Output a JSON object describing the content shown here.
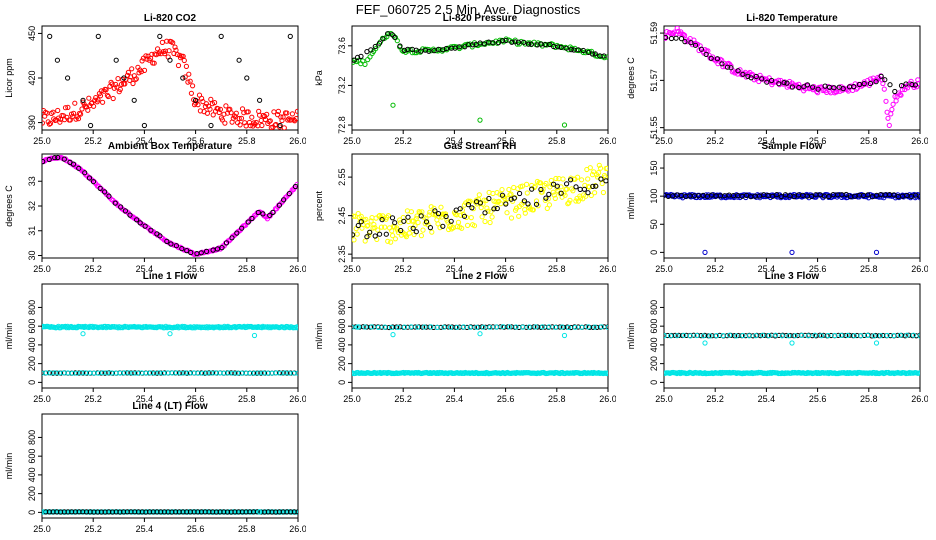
{
  "page_title": "FEF_060725  2.5 Min. Ave. Diagnostics",
  "chart_data": [
    {
      "id": "co2",
      "type": "scatter",
      "title": "Li-820 CO2",
      "ylabel": "Licor ppm",
      "xlim": [
        25.0,
        26.0
      ],
      "ylim": [
        385,
        455
      ],
      "xticks": [
        "25.0",
        "25.2",
        "25.4",
        "25.6",
        "25.8",
        "26.0"
      ],
      "yticks": [
        390,
        420,
        450
      ],
      "yticks_text": [
        "390",
        "420",
        "450"
      ],
      "series": [
        {
          "color": "#ff0000",
          "kind": "trend",
          "knots": [
            [
              25.0,
              392
            ],
            [
              25.05,
              393
            ],
            [
              25.1,
              396
            ],
            [
              25.2,
              402
            ],
            [
              25.3,
              415
            ],
            [
              25.4,
              428
            ],
            [
              25.45,
              438
            ],
            [
              25.5,
              440
            ],
            [
              25.55,
              430
            ],
            [
              25.6,
              405
            ],
            [
              25.7,
              396
            ],
            [
              25.8,
              393
            ],
            [
              25.9,
              392
            ],
            [
              26.0,
              392
            ]
          ],
          "n": 220,
          "jitter": 6
        },
        {
          "color": "#000000",
          "kind": "rows",
          "rows": [
            448,
            432,
            420,
            405,
            388
          ],
          "xs": [
            25.03,
            25.06,
            25.1,
            25.16,
            25.19,
            25.22,
            25.29,
            25.32,
            25.36,
            25.4,
            25.46,
            25.5,
            25.55,
            25.6,
            25.66,
            25.7,
            25.77,
            25.8,
            25.85,
            25.93,
            25.97
          ]
        }
      ]
    },
    {
      "id": "pressure",
      "type": "scatter",
      "title": "Li-820 Pressure",
      "ylabel": "kPa",
      "xlim": [
        25.0,
        26.0
      ],
      "ylim": [
        72.75,
        73.8
      ],
      "xticks": [
        "25.0",
        "25.2",
        "25.4",
        "25.6",
        "25.8",
        "26.0"
      ],
      "yticks": [
        72.8,
        73.2,
        73.6
      ],
      "yticks_text": [
        "72.8",
        "73.2",
        "73.6"
      ],
      "series": [
        {
          "color": "#00bb00",
          "kind": "trend",
          "knots": [
            [
              25.0,
              73.45
            ],
            [
              25.05,
              73.43
            ],
            [
              25.1,
              73.6
            ],
            [
              25.15,
              73.75
            ],
            [
              25.2,
              73.55
            ],
            [
              25.3,
              73.55
            ],
            [
              25.4,
              73.58
            ],
            [
              25.5,
              73.62
            ],
            [
              25.6,
              73.65
            ],
            [
              25.7,
              73.62
            ],
            [
              25.8,
              73.6
            ],
            [
              25.9,
              73.55
            ],
            [
              26.0,
              73.48
            ]
          ],
          "n": 120,
          "jitter": 0.02
        },
        {
          "color": "#000000",
          "kind": "trend",
          "knots": [
            [
              25.0,
              73.45
            ],
            [
              25.1,
              73.6
            ],
            [
              25.15,
              73.75
            ],
            [
              25.2,
              73.56
            ],
            [
              25.3,
              73.55
            ],
            [
              25.4,
              73.58
            ],
            [
              25.5,
              73.62
            ],
            [
              25.6,
              73.65
            ],
            [
              25.7,
              73.62
            ],
            [
              25.8,
              73.6
            ],
            [
              25.9,
              73.55
            ],
            [
              26.0,
              73.48
            ]
          ],
          "n": 60,
          "jitter": 0.01
        },
        {
          "color": "#00bb00",
          "kind": "points",
          "points": [
            [
              25.16,
              73.0
            ],
            [
              25.5,
              72.85
            ],
            [
              25.83,
              72.8
            ]
          ]
        }
      ]
    },
    {
      "id": "licor_temp",
      "type": "scatter",
      "title": "Li-820 Temperature",
      "ylabel": "degrees C",
      "xlim": [
        25.0,
        26.0
      ],
      "ylim": [
        51.549,
        51.593
      ],
      "xticks": [
        "25.0",
        "25.2",
        "25.4",
        "25.6",
        "25.8",
        "26.0"
      ],
      "yticks": [
        51.55,
        51.57,
        51.59
      ],
      "yticks_text": [
        "51.55",
        "51.57",
        "51.59"
      ],
      "series": [
        {
          "color": "#ff00ff",
          "kind": "trend",
          "knots": [
            [
              25.0,
              51.589
            ],
            [
              25.05,
              51.591
            ],
            [
              25.1,
              51.587
            ],
            [
              25.2,
              51.579
            ],
            [
              25.3,
              51.573
            ],
            [
              25.4,
              51.57
            ],
            [
              25.5,
              51.568
            ],
            [
              25.6,
              51.566
            ],
            [
              25.7,
              51.566
            ],
            [
              25.8,
              51.569
            ],
            [
              25.85,
              51.572
            ],
            [
              25.88,
              51.552
            ],
            [
              25.9,
              51.562
            ],
            [
              25.95,
              51.568
            ],
            [
              26.0,
              51.569
            ]
          ],
          "n": 200,
          "jitter": 0.0015
        },
        {
          "color": "#000000",
          "kind": "trend",
          "knots": [
            [
              25.0,
              51.589
            ],
            [
              25.1,
              51.586
            ],
            [
              25.2,
              51.579
            ],
            [
              25.3,
              51.573
            ],
            [
              25.4,
              51.57
            ],
            [
              25.5,
              51.568
            ],
            [
              25.6,
              51.567
            ],
            [
              25.7,
              51.567
            ],
            [
              25.8,
              51.569
            ],
            [
              25.85,
              51.571
            ],
            [
              25.9,
              51.566
            ],
            [
              25.95,
              51.568
            ],
            [
              26.0,
              51.569
            ]
          ],
          "n": 50,
          "jitter": 0.0008
        }
      ]
    },
    {
      "id": "box_temp",
      "type": "scatter",
      "title": "Ambient Box Temperature",
      "ylabel": "degrees C",
      "xlim": [
        25.0,
        26.0
      ],
      "ylim": [
        29.9,
        34.1
      ],
      "xticks": [
        "25.0",
        "25.2",
        "25.4",
        "25.6",
        "25.8",
        "26.0"
      ],
      "yticks": [
        30,
        31,
        32,
        33
      ],
      "yticks_text": [
        "30",
        "31",
        "32",
        "33"
      ],
      "series": [
        {
          "color": "#ff00ff",
          "kind": "trend",
          "knots": [
            [
              25.0,
              33.8
            ],
            [
              25.05,
              33.95
            ],
            [
              25.08,
              33.95
            ],
            [
              25.15,
              33.5
            ],
            [
              25.2,
              33.0
            ],
            [
              25.3,
              32.0
            ],
            [
              25.4,
              31.2
            ],
            [
              25.5,
              30.5
            ],
            [
              25.6,
              30.05
            ],
            [
              25.7,
              30.3
            ],
            [
              25.8,
              31.3
            ],
            [
              25.85,
              31.8
            ],
            [
              25.88,
              31.5
            ],
            [
              25.95,
              32.3
            ],
            [
              26.0,
              32.9
            ]
          ],
          "n": 200,
          "jitter": 0.03
        },
        {
          "color": "#000000",
          "kind": "trend",
          "knots": [
            [
              25.0,
              33.8
            ],
            [
              25.05,
              33.95
            ],
            [
              25.08,
              33.95
            ],
            [
              25.15,
              33.5
            ],
            [
              25.2,
              33.0
            ],
            [
              25.3,
              32.0
            ],
            [
              25.4,
              31.2
            ],
            [
              25.5,
              30.5
            ],
            [
              25.6,
              30.05
            ],
            [
              25.7,
              30.3
            ],
            [
              25.8,
              31.3
            ],
            [
              25.85,
              31.8
            ],
            [
              25.88,
              31.5
            ],
            [
              25.95,
              32.3
            ],
            [
              26.0,
              32.9
            ]
          ],
          "n": 50,
          "jitter": 0.02
        }
      ]
    },
    {
      "id": "rh",
      "type": "scatter",
      "title": "Gas Stream RH",
      "ylabel": "percent",
      "xlim": [
        25.0,
        26.0
      ],
      "ylim": [
        2.34,
        2.61
      ],
      "xticks": [
        "25.0",
        "25.2",
        "25.4",
        "25.6",
        "25.8",
        "26.0"
      ],
      "yticks": [
        2.35,
        2.45,
        2.55
      ],
      "yticks_text": [
        "2.35",
        "2.45",
        "2.55"
      ],
      "series": [
        {
          "color": "#ffff00",
          "kind": "trend",
          "knots": [
            [
              25.0,
              2.42
            ],
            [
              25.2,
              2.42
            ],
            [
              25.4,
              2.45
            ],
            [
              25.6,
              2.48
            ],
            [
              25.8,
              2.51
            ],
            [
              26.0,
              2.55
            ]
          ],
          "n": 260,
          "jitter": 0.04
        },
        {
          "color": "#000000",
          "kind": "trend",
          "knots": [
            [
              25.0,
              2.42
            ],
            [
              25.2,
              2.42
            ],
            [
              25.4,
              2.45
            ],
            [
              25.6,
              2.48
            ],
            [
              25.8,
              2.51
            ],
            [
              26.0,
              2.55
            ]
          ],
          "n": 60,
          "jitter": 0.025
        }
      ]
    },
    {
      "id": "sample_flow",
      "type": "scatter",
      "title": "Sample Flow",
      "ylabel": "ml/min",
      "xlim": [
        25.0,
        26.0
      ],
      "ylim": [
        -10,
        175
      ],
      "xticks": [
        "25.0",
        "25.2",
        "25.4",
        "25.6",
        "25.8",
        "26.0"
      ],
      "yticks": [
        0,
        50,
        100,
        150
      ],
      "yticks_text": [
        "0",
        "50",
        "100",
        "150"
      ],
      "series": [
        {
          "color": "#0000cc",
          "kind": "band",
          "y": 100,
          "n": 220,
          "jitter": 3
        },
        {
          "color": "#000000",
          "kind": "band",
          "y": 101,
          "n": 60,
          "jitter": 2
        },
        {
          "color": "#0000cc",
          "kind": "points",
          "points": [
            [
              25.16,
              0
            ],
            [
              25.5,
              0
            ],
            [
              25.83,
              0
            ]
          ]
        }
      ]
    },
    {
      "id": "line1",
      "type": "scatter",
      "title": "Line 1 Flow",
      "ylabel": "ml/min",
      "xlim": [
        25.0,
        26.0
      ],
      "ylim": [
        -60,
        1050
      ],
      "xticks": [
        "25.0",
        "25.2",
        "25.4",
        "25.6",
        "25.8",
        "26.0"
      ],
      "yticks": [
        0,
        200,
        400,
        600,
        800
      ],
      "yticks_text": [
        "0",
        "200",
        "400",
        "600",
        "800"
      ],
      "series": [
        {
          "color": "#00e5e5",
          "kind": "band",
          "y": 590,
          "n": 220,
          "jitter": 8
        },
        {
          "color": "#000000",
          "kind": "band",
          "y": 100,
          "n": 70,
          "jitter": 2
        },
        {
          "color": "#00e5e5",
          "kind": "band",
          "y": 100,
          "n": 60,
          "jitter": 2
        },
        {
          "color": "#00e5e5",
          "kind": "points",
          "points": [
            [
              25.16,
              520
            ],
            [
              25.5,
              520
            ],
            [
              25.83,
              500
            ]
          ]
        }
      ]
    },
    {
      "id": "line2",
      "type": "scatter",
      "title": "Line 2 Flow",
      "ylabel": "ml/min",
      "xlim": [
        25.0,
        26.0
      ],
      "ylim": [
        -60,
        1050
      ],
      "xticks": [
        "25.0",
        "25.2",
        "25.4",
        "25.6",
        "25.8",
        "26.0"
      ],
      "yticks": [
        0,
        200,
        400,
        600,
        800
      ],
      "yticks_text": [
        "0",
        "200",
        "400",
        "600",
        "800"
      ],
      "series": [
        {
          "color": "#00e5e5",
          "kind": "band",
          "y": 100,
          "n": 220,
          "jitter": 6
        },
        {
          "color": "#000000",
          "kind": "band",
          "y": 590,
          "n": 70,
          "jitter": 4
        },
        {
          "color": "#00e5e5",
          "kind": "band",
          "y": 590,
          "n": 40,
          "jitter": 4
        },
        {
          "color": "#00e5e5",
          "kind": "points",
          "points": [
            [
              25.02,
              590
            ],
            [
              25.16,
              510
            ],
            [
              25.5,
              520
            ],
            [
              25.83,
              500
            ]
          ]
        }
      ]
    },
    {
      "id": "line3",
      "type": "scatter",
      "title": "Line 3 Flow",
      "ylabel": "ml/min",
      "xlim": [
        25.0,
        26.0
      ],
      "ylim": [
        -60,
        1050
      ],
      "xticks": [
        "25.0",
        "25.2",
        "25.4",
        "25.6",
        "25.8",
        "26.0"
      ],
      "yticks": [
        0,
        200,
        400,
        600,
        800
      ],
      "yticks_text": [
        "0",
        "200",
        "400",
        "600",
        "800"
      ],
      "series": [
        {
          "color": "#00e5e5",
          "kind": "band",
          "y": 100,
          "n": 220,
          "jitter": 6
        },
        {
          "color": "#000000",
          "kind": "band",
          "y": 500,
          "n": 70,
          "jitter": 4
        },
        {
          "color": "#00e5e5",
          "kind": "band",
          "y": 500,
          "n": 40,
          "jitter": 4
        },
        {
          "color": "#00e5e5",
          "kind": "points",
          "points": [
            [
              25.0,
              500
            ],
            [
              25.16,
              420
            ],
            [
              25.5,
              420
            ],
            [
              25.83,
              420
            ]
          ]
        }
      ]
    },
    {
      "id": "line4",
      "type": "scatter",
      "title": "Line 4 (LT) Flow",
      "ylabel": "ml/min",
      "xlim": [
        25.0,
        26.0
      ],
      "ylim": [
        -60,
        1050
      ],
      "xticks": [
        "25.0",
        "25.2",
        "25.4",
        "25.6",
        "25.8",
        "26.0"
      ],
      "yticks": [
        0,
        200,
        400,
        600,
        800
      ],
      "yticks_text": [
        "0",
        "200",
        "400",
        "600",
        "800"
      ],
      "series": [
        {
          "color": "#00e5e5",
          "kind": "band",
          "y": 5,
          "n": 200,
          "jitter": 2
        },
        {
          "color": "#000000",
          "kind": "band",
          "y": 5,
          "n": 70,
          "jitter": 1
        },
        {
          "color": "#00e5e5",
          "kind": "points",
          "points": [
            [
              25.0,
              5
            ],
            [
              25.85,
              5
            ]
          ]
        }
      ]
    }
  ]
}
